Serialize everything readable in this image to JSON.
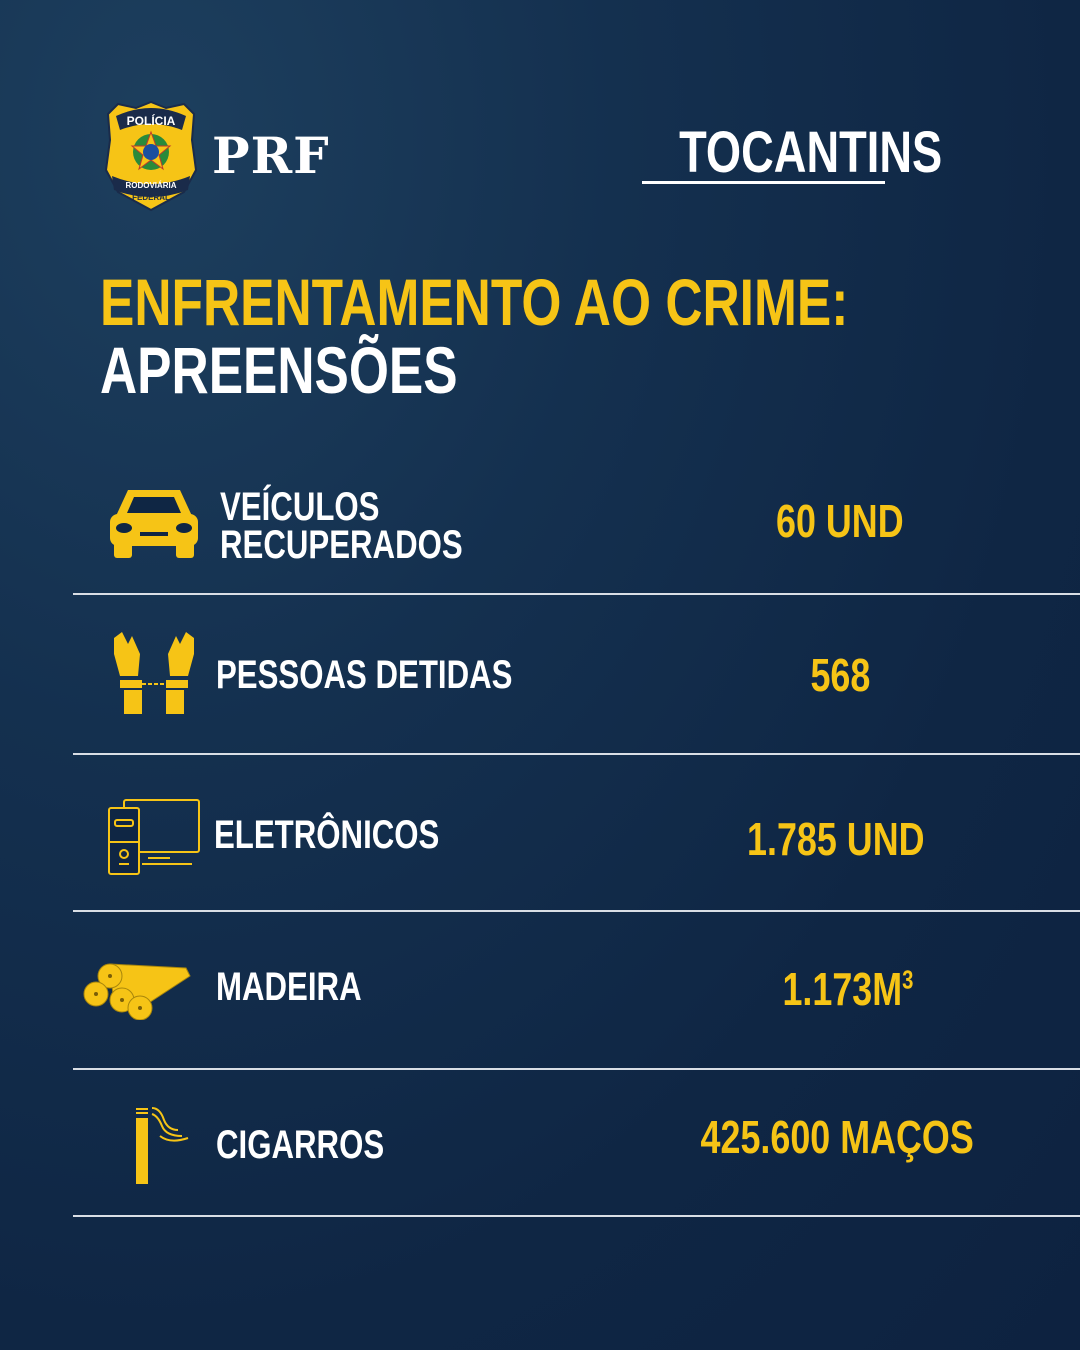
{
  "header": {
    "badge_text_top": "POLÍCIA",
    "badge_text_bottom_1": "RODOVIÁRIA",
    "badge_text_bottom_2": "FEDERAL",
    "brand": "PRF",
    "state": "TOCANTINS"
  },
  "title": {
    "line1": "ENFRENTAMENTO AO CRIME:",
    "line2": "APREENSÕES"
  },
  "items": [
    {
      "icon": "car-icon",
      "label_line1": "VEÍCULOS",
      "label_line2": "RECUPERADOS",
      "value": "60 UND"
    },
    {
      "icon": "handcuffs-icon",
      "label_line1": "PESSOAS DETIDAS",
      "value": "568"
    },
    {
      "icon": "computer-icon",
      "label_line1": "ELETRÔNICOS",
      "value": "1.785 UND"
    },
    {
      "icon": "logs-icon",
      "label_line1": "MADEIRA",
      "value": "1.173M",
      "value_sup": "3"
    },
    {
      "icon": "cigarette-icon",
      "label_line1": "CIGARROS",
      "value": "425.600 MAÇOS"
    }
  ],
  "colors": {
    "accent": "#f6c416",
    "background": "#0f2644",
    "text": "#ffffff"
  }
}
